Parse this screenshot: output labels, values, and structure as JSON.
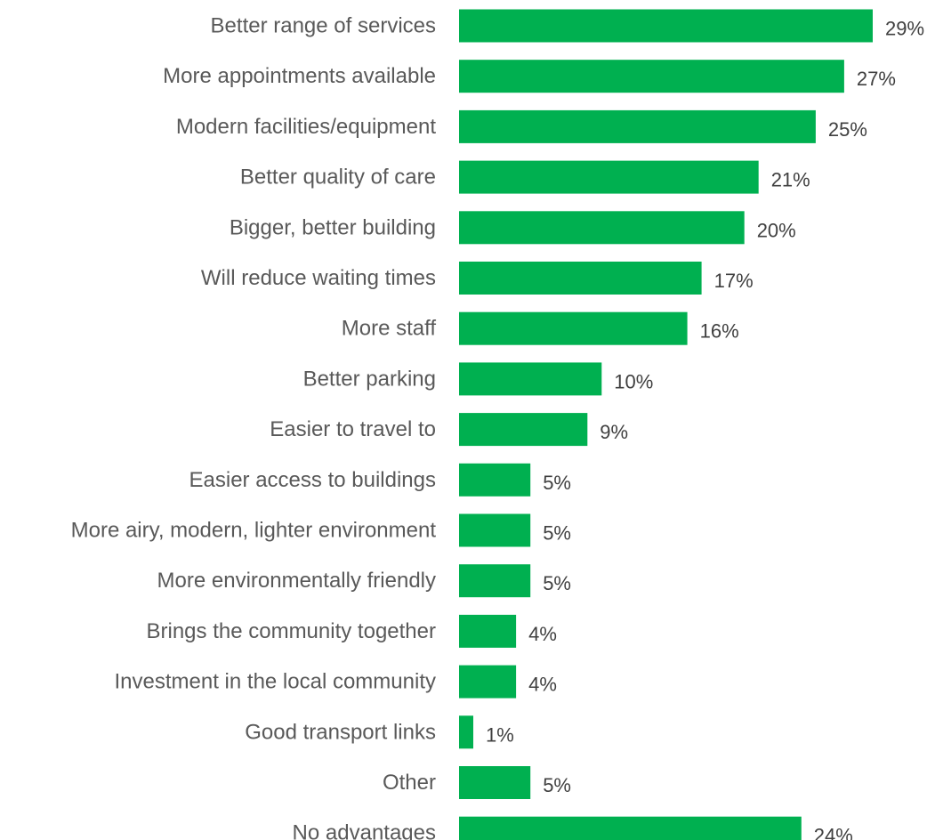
{
  "chart_data": {
    "type": "bar",
    "orientation": "horizontal",
    "categories": [
      "Better range of services",
      "More appointments available",
      "Modern facilities/equipment",
      "Better quality of care",
      "Bigger, better building",
      "Will reduce waiting times",
      "More staff",
      "Better parking",
      "Easier to travel to",
      "Easier access to buildings",
      "More airy, modern, lighter environment",
      "More environmentally friendly",
      "Brings the community together",
      "Investment in the local community",
      "Good transport links",
      "Other",
      "No advantages"
    ],
    "values": [
      29,
      27,
      25,
      21,
      20,
      17,
      16,
      10,
      9,
      5,
      5,
      5,
      4,
      4,
      1,
      5,
      24
    ],
    "value_labels": [
      "29%",
      "27%",
      "25%",
      "21%",
      "20%",
      "17%",
      "16%",
      "10%",
      "9%",
      "5%",
      "5%",
      "5%",
      "4%",
      "4%",
      "1%",
      "5%",
      "24%"
    ],
    "unit": "%",
    "xlim": [
      0,
      29
    ],
    "grid": false,
    "legend": "none",
    "bar_color": "#00B050"
  }
}
